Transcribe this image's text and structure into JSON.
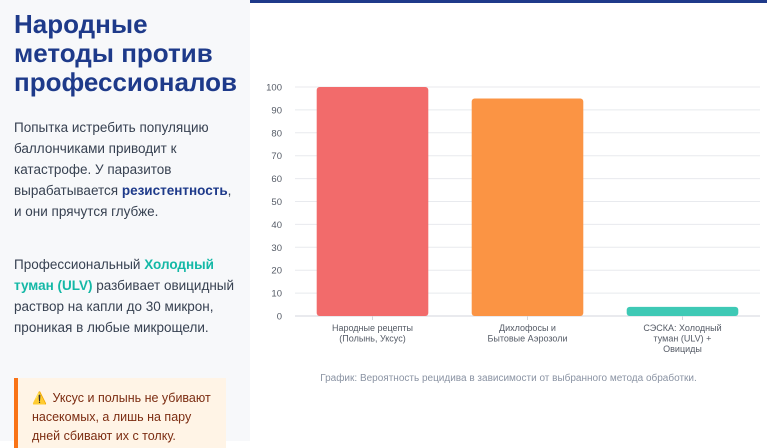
{
  "title": "Народные методы против профессионалов",
  "paragraph1": {
    "text_before": "Попытка истребить популяцию баллончиками приводит к катастрофе. У паразитов вырабатывается ",
    "highlight": "резистентность",
    "text_after": ", и они прячутся глубже."
  },
  "paragraph2": {
    "text_before": "Профессиональный ",
    "highlight": "Холодный туман (ULV)",
    "text_after": " разбивает овицидный раствор на капли до 30 микрон, проникая в любые микрощели."
  },
  "warning": {
    "icon": "warning-icon",
    "text": "Уксус и полынь не убивают насекомых, а лишь на пару дней сбивают их с толку."
  },
  "chart_data": {
    "type": "bar",
    "categories": [
      [
        "Народные рецепты",
        "(Полынь, Уксус)"
      ],
      [
        "Дихлофосы и",
        "Бытовые Аэрозоли"
      ],
      [
        "СЭСКА: Холодный",
        "туман (ULV) +",
        "Овициды"
      ]
    ],
    "values": [
      100,
      95,
      4
    ],
    "colors": [
      "#f26b6b",
      "#fb9444",
      "#3ec9b5"
    ],
    "ylim": [
      0,
      100
    ],
    "yticks": [
      0,
      10,
      20,
      30,
      40,
      50,
      60,
      70,
      80,
      90,
      100
    ],
    "grid": true,
    "caption": "График: Вероятность рецидива в зависимости от выбранного метода обработки."
  }
}
